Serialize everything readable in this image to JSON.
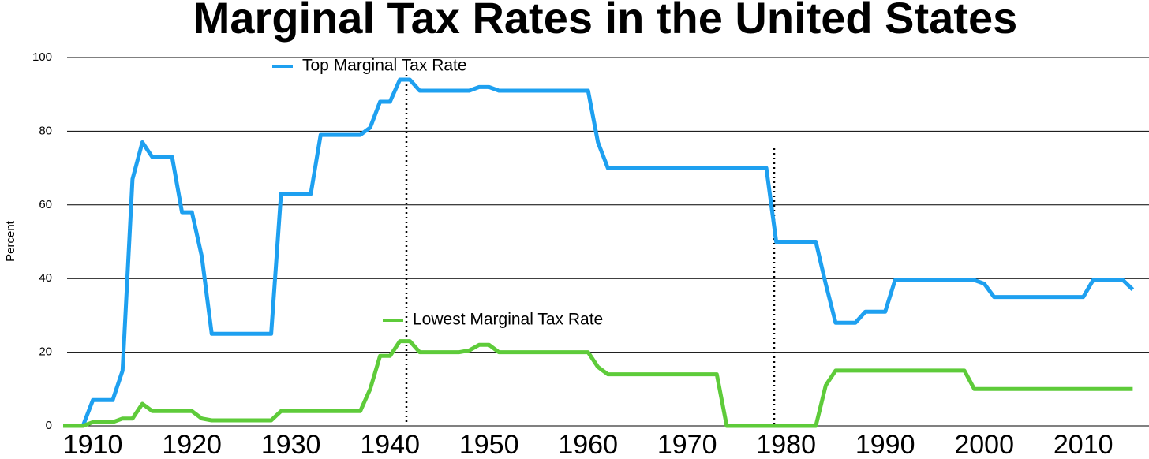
{
  "chart_data": {
    "type": "line",
    "title": "Marginal Tax Rates in the United States",
    "y_label": "Percent",
    "x": [
      1907,
      1908,
      1909,
      1910,
      1911,
      1912,
      1913,
      1914,
      1915,
      1916,
      1917,
      1918,
      1919,
      1920,
      1921,
      1922,
      1923,
      1924,
      1925,
      1926,
      1927,
      1928,
      1929,
      1930,
      1931,
      1932,
      1933,
      1934,
      1935,
      1936,
      1937,
      1938,
      1939,
      1940,
      1941,
      1942,
      1943,
      1944,
      1945,
      1946,
      1947,
      1948,
      1949,
      1950,
      1951,
      1952,
      1953,
      1954,
      1955,
      1956,
      1957,
      1958,
      1959,
      1960,
      1961,
      1962,
      1963,
      1964,
      1965,
      1966,
      1967,
      1968,
      1969,
      1970,
      1971,
      1972,
      1973,
      1974,
      1975,
      1976,
      1977,
      1978,
      1979,
      1980,
      1981,
      1982,
      1983,
      1984,
      1985,
      1986,
      1987,
      1988,
      1989,
      1990,
      1991,
      1992,
      1993,
      1994,
      1995,
      1996,
      1997,
      1998,
      1999,
      2000,
      2001,
      2002,
      2003,
      2004,
      2005,
      2006,
      2007,
      2008,
      2009,
      2010,
      2011,
      2012,
      2013,
      2014,
      2015
    ],
    "series": [
      {
        "name": "Top Marginal Tax Rate",
        "color": "#1ea0f0",
        "values": [
          0,
          0,
          0,
          7,
          7,
          7,
          15,
          67,
          77,
          73,
          73,
          73,
          58,
          58,
          46,
          25,
          25,
          25,
          25,
          25,
          25,
          25,
          63,
          63,
          63,
          63,
          79,
          79,
          79,
          79,
          79,
          81,
          88,
          88,
          94,
          94,
          91,
          91,
          91,
          91,
          91,
          91,
          92,
          92,
          91,
          91,
          91,
          91,
          91,
          91,
          91,
          91,
          91,
          91,
          77,
          70,
          70,
          70,
          70,
          70,
          70,
          70,
          70,
          70,
          70,
          70,
          70,
          70,
          70,
          70,
          70,
          70,
          50,
          50,
          50,
          50,
          50,
          38.5,
          28,
          28,
          28,
          31,
          31,
          31,
          39.6,
          39.6,
          39.6,
          39.6,
          39.6,
          39.6,
          39.6,
          39.6,
          39.6,
          38.6,
          35,
          35,
          35,
          35,
          35,
          35,
          35,
          35,
          35,
          35,
          39.6,
          39.6,
          39.6,
          39.6,
          37
        ]
      },
      {
        "name": "Lowest Marginal Tax Rate",
        "color": "#5ecb3a",
        "values": [
          0,
          0,
          0,
          1,
          1,
          1,
          2,
          2,
          6,
          4,
          4,
          4,
          4,
          4,
          2,
          1.5,
          1.5,
          1.5,
          1.5,
          1.5,
          1.5,
          1.5,
          4,
          4,
          4,
          4,
          4,
          4,
          4,
          4,
          4,
          10,
          19,
          19,
          23,
          23,
          20,
          20,
          20,
          20,
          20,
          20.5,
          22,
          22,
          20,
          20,
          20,
          20,
          20,
          20,
          20,
          20,
          20,
          20,
          16,
          14,
          14,
          14,
          14,
          14,
          14,
          14,
          14,
          14,
          14,
          14,
          14,
          0,
          0,
          0,
          0,
          0,
          0,
          0,
          0,
          0,
          0,
          11,
          15,
          15,
          15,
          15,
          15,
          15,
          15,
          15,
          15,
          15,
          15,
          15,
          15,
          15,
          10,
          10,
          10,
          10,
          10,
          10,
          10,
          10,
          10,
          10,
          10,
          10,
          10,
          10,
          10,
          10,
          10
        ]
      }
    ],
    "xlim": [
      1907,
      2016
    ],
    "ylim": [
      0,
      100
    ],
    "xticks": [
      1910,
      1920,
      1930,
      1940,
      1950,
      1960,
      1970,
      1980,
      1990,
      2000,
      2010
    ],
    "yticks": [
      0,
      20,
      40,
      60,
      80,
      100
    ],
    "grid": true
  }
}
